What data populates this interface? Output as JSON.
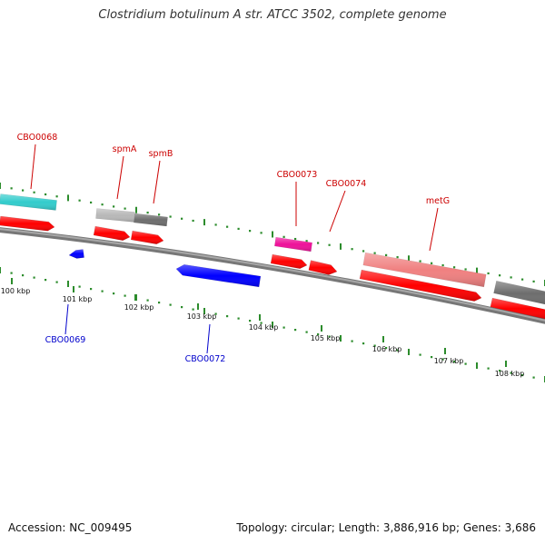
{
  "title": "Clostridium botulinum A str. ATCC 3502, complete genome",
  "footer": {
    "accession": "Accession: NC_009495",
    "stats": "Topology: circular; Length: 3,886,916 bp; Genes: 3,686"
  },
  "colors": {
    "backbone": "#8f8f8f",
    "forward_label": "#cc0000",
    "reverse_label": "#0000cc",
    "dots": "#2c8c2c"
  },
  "ticks": [
    {
      "position_kbp": 100,
      "label": "100 kbp"
    },
    {
      "position_kbp": 101,
      "label": "101 kbp"
    },
    {
      "position_kbp": 102,
      "label": "102 kbp"
    },
    {
      "position_kbp": 103,
      "label": "103 kbp"
    },
    {
      "position_kbp": 104,
      "label": "104 kbp"
    },
    {
      "position_kbp": 105,
      "label": "105 kbp"
    },
    {
      "position_kbp": 106,
      "label": "106 kbp"
    },
    {
      "position_kbp": 107,
      "label": "107 kbp"
    },
    {
      "position_kbp": 108,
      "label": "108 kbp"
    }
  ],
  "genes": [
    {
      "name": "CBO0068",
      "label": "CBO0068",
      "strand": "+",
      "color": "#33cccc"
    },
    {
      "name": "spmA",
      "label": "spmA",
      "strand": "+",
      "color": "#b8b8b8"
    },
    {
      "name": "spmB",
      "label": "spmB",
      "strand": "+",
      "color": "#6e6e6e"
    },
    {
      "name": "CBO0069",
      "label": "CBO0069",
      "strand": "-",
      "color": "#0000ff"
    },
    {
      "name": "CBO0072",
      "label": "CBO0072",
      "strand": "-",
      "color": "#0000ff"
    },
    {
      "name": "CBO0073",
      "label": "CBO0073",
      "strand": "+",
      "color": "#ee1199"
    },
    {
      "name": "CBO0074",
      "label": "CBO0074",
      "strand": "+",
      "color": "#ff0000"
    },
    {
      "name": "metG",
      "label": "metG",
      "strand": "+",
      "color": "#f08080"
    },
    {
      "name": "next-gene",
      "label": "",
      "strand": "+",
      "color": "#6e6e6e"
    }
  ]
}
